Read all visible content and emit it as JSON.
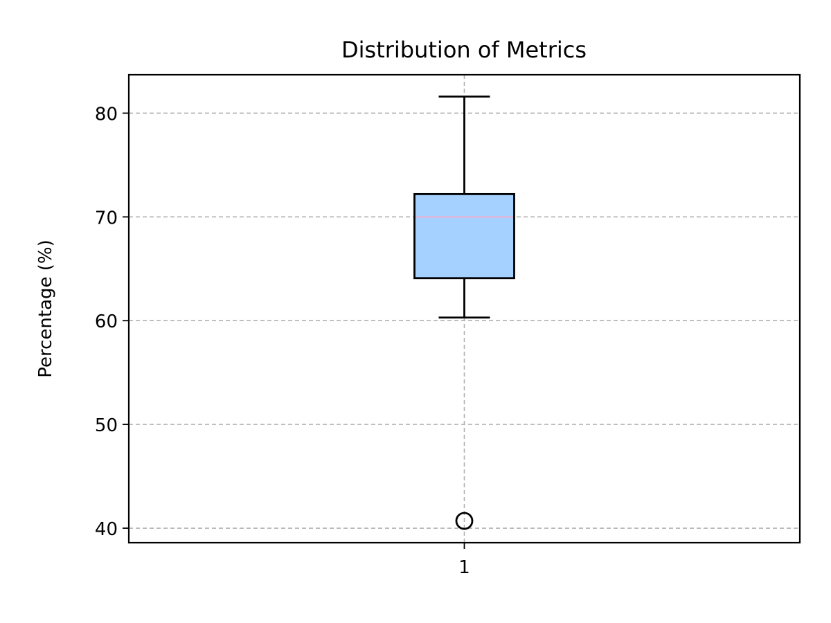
{
  "chart_data": {
    "type": "box",
    "title": "Distribution of Metrics",
    "ylabel": "Percentage (%)",
    "xlabel": "",
    "ylim": [
      38.6,
      83.7
    ],
    "yticks": [
      40,
      50,
      60,
      70,
      80
    ],
    "categories": [
      "1"
    ],
    "grid": true,
    "boxes": [
      {
        "category": "1",
        "whisker_low": 60.3,
        "q1": 64.1,
        "median": 70.0,
        "q3": 72.2,
        "whisker_high": 81.6,
        "outliers": [
          40.7
        ]
      }
    ],
    "colors": {
      "box_fill": "#a4d1ff",
      "median": "#d8b8dc",
      "grid": "#b0b0b0",
      "edge": "#000000"
    }
  }
}
